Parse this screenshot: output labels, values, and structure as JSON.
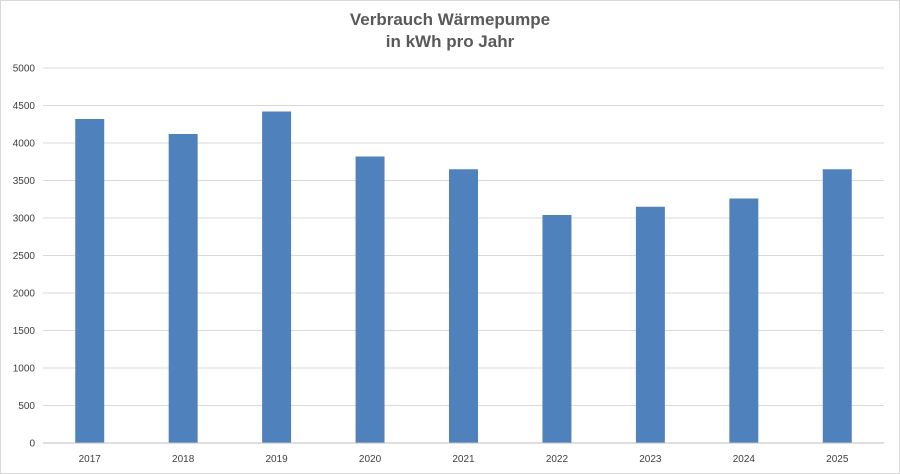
{
  "chart_data": {
    "type": "bar",
    "title_line1": "Verbrauch Wärmepumpe",
    "title_line2": "in kWh pro Jahr",
    "categories": [
      "2017",
      "2018",
      "2019",
      "2020",
      "2021",
      "2022",
      "2023",
      "2024",
      "2025"
    ],
    "values": [
      4320,
      4120,
      4420,
      3820,
      3650,
      3040,
      3150,
      3260,
      3650
    ],
    "ylim": [
      0,
      5000
    ],
    "yticks": [
      0,
      500,
      1000,
      1500,
      2000,
      2500,
      3000,
      3500,
      4000,
      4500,
      5000
    ],
    "grid": true,
    "legend": "none",
    "colors": {
      "bar": "#4f81bd",
      "grid": "#d9d9d9",
      "axis": "#bfbfbf"
    }
  }
}
